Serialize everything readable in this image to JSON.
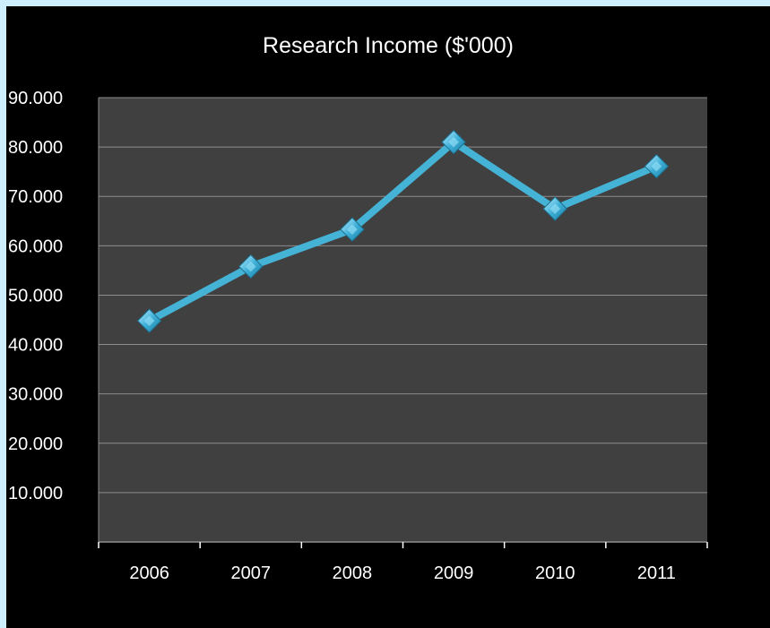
{
  "chart_data": {
    "type": "line",
    "title": "Research Income ($'000)",
    "xlabel": "",
    "ylabel": "",
    "categories": [
      "2006",
      "2007",
      "2008",
      "2009",
      "2010",
      "2011"
    ],
    "series": [
      {
        "values": [
          44.8,
          55.8,
          63.3,
          81.0,
          67.5,
          76.1
        ],
        "color": "#45b3d6"
      }
    ],
    "ylim": [
      0,
      90
    ],
    "ytick_values": [
      10,
      20,
      30,
      40,
      50,
      60,
      70,
      80,
      90
    ],
    "ytick_labels": [
      "10.000",
      "20.000",
      "30.000",
      "40.000",
      "50.000",
      "60.000",
      "70.000",
      "80.000",
      "90.000"
    ],
    "grid": true,
    "legend": "none",
    "marker": "diamond",
    "colors": {
      "background": "#000000",
      "plot_area": "#404040",
      "gridline": "#8c8c8c",
      "text": "#ffffff",
      "outer": "#cdeefc"
    }
  }
}
